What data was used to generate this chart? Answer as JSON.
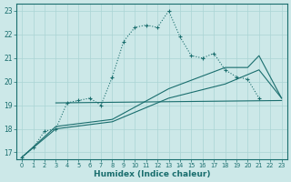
{
  "xlabel": "Humidex (Indice chaleur)",
  "background_color": "#cce8e8",
  "grid_color": "#aad4d4",
  "line_color": "#1a6e6e",
  "xlim": [
    -0.5,
    23.5
  ],
  "ylim": [
    16.7,
    23.3
  ],
  "yticks": [
    17,
    18,
    19,
    20,
    21,
    22,
    23
  ],
  "xticks": [
    0,
    1,
    2,
    3,
    4,
    5,
    6,
    7,
    8,
    9,
    10,
    11,
    12,
    13,
    14,
    15,
    16,
    17,
    18,
    19,
    20,
    21,
    22,
    23
  ],
  "series": [
    {
      "x": [
        0,
        1,
        2,
        3,
        4,
        5,
        6,
        7,
        8,
        9,
        10,
        11,
        12,
        13,
        14,
        15,
        16,
        17,
        18,
        19,
        20,
        21
      ],
      "y": [
        16.8,
        17.2,
        17.9,
        18.0,
        19.1,
        19.2,
        19.3,
        19.0,
        20.2,
        21.7,
        22.3,
        22.4,
        22.3,
        23.0,
        21.9,
        21.1,
        21.0,
        21.2,
        20.5,
        20.2,
        20.1,
        19.3
      ],
      "marker": "+",
      "markersize": 3.5,
      "linewidth": 0.8,
      "linestyle": ":"
    },
    {
      "x": [
        3,
        23
      ],
      "y": [
        19.1,
        19.2
      ],
      "marker": null,
      "markersize": 0,
      "linewidth": 0.8,
      "linestyle": "-"
    },
    {
      "x": [
        0,
        3,
        8,
        13,
        18,
        21,
        23
      ],
      "y": [
        16.8,
        18.0,
        18.3,
        19.3,
        19.9,
        20.5,
        19.3
      ],
      "marker": null,
      "markersize": 0,
      "linewidth": 0.8,
      "linestyle": "-"
    },
    {
      "x": [
        0,
        3,
        8,
        13,
        18,
        20,
        21,
        23
      ],
      "y": [
        16.8,
        18.1,
        18.4,
        19.7,
        20.6,
        20.6,
        21.1,
        19.3
      ],
      "marker": null,
      "markersize": 0,
      "linewidth": 0.8,
      "linestyle": "-"
    }
  ]
}
